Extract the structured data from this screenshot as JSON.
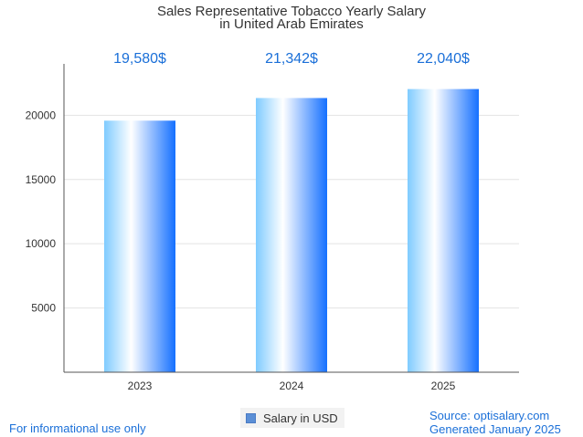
{
  "chart_data": {
    "type": "bar",
    "title_lines": [
      "Sales Representative Tobacco Yearly Salary",
      "in United Arab Emirates"
    ],
    "categories": [
      "2023",
      "2024",
      "2025"
    ],
    "series": [
      {
        "name": "Salary in USD",
        "values": [
          19580,
          21342,
          22040
        ]
      }
    ],
    "data_labels": [
      "19,580$",
      "21,342$",
      "22,040$"
    ],
    "y_ticks": [
      "5000",
      "10000",
      "15000",
      "20000"
    ],
    "ylim": [
      0,
      24000
    ],
    "grid": true,
    "legend_position": "bottom",
    "colors": {
      "bar_light": "#cdeeff",
      "bar_mid": "#8dd0ff",
      "bar_dark": "#1570ff",
      "label": "#1a6fd8"
    }
  },
  "footer": {
    "disclaimer": "For informational use only",
    "source": "Source: optisalary.com",
    "generated": "Generated January 2025"
  }
}
